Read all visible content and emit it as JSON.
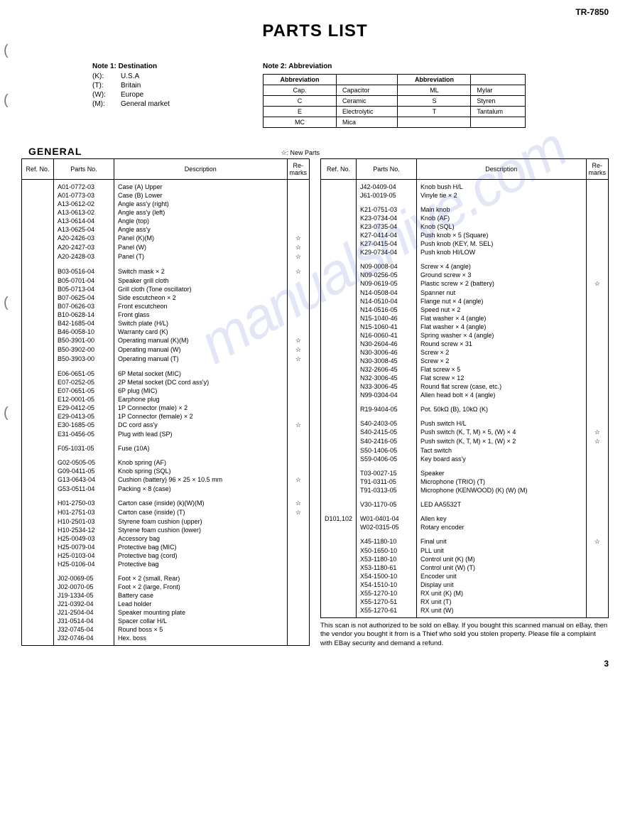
{
  "model": "TR-7850",
  "title": "PARTS LIST",
  "note1": {
    "header": "Note 1:  Destination",
    "rows": [
      {
        "code": "(K):",
        "label": "U.S.A"
      },
      {
        "code": "(T):",
        "label": "Britain"
      },
      {
        "code": "(W):",
        "label": "Europe"
      },
      {
        "code": "(M):",
        "label": "General market"
      }
    ]
  },
  "note2": {
    "header": "Note 2:  Abbreviation",
    "th": [
      "Abbreviation",
      "",
      "Abbreviation",
      ""
    ],
    "rows": [
      [
        "Cap.",
        "Capacitor",
        "ML",
        "Mylar"
      ],
      [
        "C",
        "Ceramic",
        "S",
        "Styren"
      ],
      [
        "E",
        "Electrolytic",
        "T",
        "Tantalum"
      ],
      [
        "MC",
        "Mica",
        "",
        ""
      ]
    ]
  },
  "section": "GENERAL",
  "newparts": "☆:  New Parts",
  "th": {
    "ref": "Ref. No.",
    "pn": "Parts No.",
    "desc": "Description",
    "rem": "Re-marks"
  },
  "left": [
    {
      "pn": "A01-0772-03",
      "desc": "Case (A) Upper"
    },
    {
      "pn": "A01-0773-03",
      "desc": "Case (B) Lower"
    },
    {
      "pn": "A13-0612-02",
      "desc": "Angle ass'y (right)"
    },
    {
      "pn": "A13-0613-02",
      "desc": "Angle ass'y (left)"
    },
    {
      "pn": "A13-0614-04",
      "desc": "Angle (top)"
    },
    {
      "pn": "A13-0625-04",
      "desc": "Angle ass'y"
    },
    {
      "pn": "A20-2426-03",
      "desc": "Panel (K)(M)",
      "rem": "☆"
    },
    {
      "pn": "A20-2427-03",
      "desc": "Panel (W)",
      "rem": "☆"
    },
    {
      "pn": "A20-2428-03",
      "desc": "Panel (T)",
      "rem": "☆"
    },
    {
      "sp": true
    },
    {
      "pn": "B03-0516-04",
      "desc": "Switch mask × 2",
      "rem": "☆"
    },
    {
      "pn": "B05-0701-04",
      "desc": "Speaker grill cloth"
    },
    {
      "pn": "B05-0713-04",
      "desc": "Grill cloth (Tone oscillator)"
    },
    {
      "pn": "B07-0625-04",
      "desc": "Side escutcheon × 2"
    },
    {
      "pn": "B07-0626-03",
      "desc": "Front escutcheon"
    },
    {
      "pn": "B10-0628-14",
      "desc": "Front glass"
    },
    {
      "pn": "B42-1685-04",
      "desc": "Switch plate (H/L)"
    },
    {
      "pn": "B46-0058-10",
      "desc": "Warranty card (K)"
    },
    {
      "pn": "B50-3901-00",
      "desc": "Operating manual (K)(M)",
      "rem": "☆"
    },
    {
      "pn": "B50-3902-00",
      "desc": "Operating manual (W)",
      "rem": "☆"
    },
    {
      "pn": "B50-3903-00",
      "desc": "Operating manual (T)",
      "rem": "☆"
    },
    {
      "sp": true
    },
    {
      "pn": "E06-0651-05",
      "desc": "6P Metal socket (MIC)"
    },
    {
      "pn": "E07-0252-05",
      "desc": "2P Metal socket (DC cord ass'y)"
    },
    {
      "pn": "E07-0651-05",
      "desc": "6P plug (MIC)"
    },
    {
      "pn": "E12-0001-05",
      "desc": "Earphone plug"
    },
    {
      "pn": "E29-0412-05",
      "desc": "1P Connector (male) × 2"
    },
    {
      "pn": "E29-0413-05",
      "desc": "1P Connector (female) × 2"
    },
    {
      "pn": "E30-1685-05",
      "desc": "DC cord ass'y",
      "rem": "☆"
    },
    {
      "pn": "E31-0456-05",
      "desc": "Plug with lead (SP)"
    },
    {
      "sp": true
    },
    {
      "pn": "F05-1031-05",
      "desc": "Fuse (10A)"
    },
    {
      "sp": true
    },
    {
      "pn": "G02-0505-05",
      "desc": "Knob spring (AF)"
    },
    {
      "pn": "G09-0411-05",
      "desc": "Knob spring (SQL)"
    },
    {
      "pn": "G13-0643-04",
      "desc": "Cushion (battery) 96 × 25 × 10.5 mm",
      "rem": "☆"
    },
    {
      "pn": "G53-0511-04",
      "desc": "Packing × 8 (case)"
    },
    {
      "sp": true
    },
    {
      "pn": "H01-2750-03",
      "desc": "Carton case (inside) (k)(W)(M)",
      "rem": "☆"
    },
    {
      "pn": "H01-2751-03",
      "desc": "Carton case (inside) (T)",
      "rem": "☆"
    },
    {
      "pn": "H10-2501-03",
      "desc": "Styrene foam cushion (upper)"
    },
    {
      "pn": "H10-2534-12",
      "desc": "Styrene foam cushion (lower)"
    },
    {
      "pn": "H25-0049-03",
      "desc": "Accessory bag"
    },
    {
      "pn": "H25-0079-04",
      "desc": "Protective bag (MIC)"
    },
    {
      "pn": "H25-0103-04",
      "desc": "Protective bag (cord)"
    },
    {
      "pn": "H25-0106-04",
      "desc": "Protective bag"
    },
    {
      "sp": true
    },
    {
      "pn": "J02-0069-05",
      "desc": "Foot × 2 (small, Rear)"
    },
    {
      "pn": "J02-0070-05",
      "desc": "Foot × 2 (large, Front)"
    },
    {
      "pn": "J19-1334-05",
      "desc": "Battery case"
    },
    {
      "pn": "J21-0392-04",
      "desc": "Lead holder"
    },
    {
      "pn": "J21-2504-04",
      "desc": "Speaker mounting plate"
    },
    {
      "pn": "J31-0514-04",
      "desc": "Spacer collar H/L"
    },
    {
      "pn": "J32-0745-04",
      "desc": "Round boss × 5"
    },
    {
      "pn": "J32-0746-04",
      "desc": "Hex. boss"
    }
  ],
  "right": [
    {
      "pn": "J42-0409-04",
      "desc": "Knob bush H/L"
    },
    {
      "pn": "J61-0019-05",
      "desc": "Vinyle tie × 2"
    },
    {
      "sp": true
    },
    {
      "pn": "K21-0751-03",
      "desc": "Main knob"
    },
    {
      "pn": "K23-0734-04",
      "desc": "Knob (AF)"
    },
    {
      "pn": "K23-0735-04",
      "desc": "Knob (SQL)"
    },
    {
      "pn": "K27-0414-04",
      "desc": "Push knob × 5 (Square)"
    },
    {
      "pn": "K27-0415-04",
      "desc": "Push knob (KEY, M. SEL)"
    },
    {
      "pn": "K29-0734-04",
      "desc": "Push knob HI/LOW"
    },
    {
      "sp": true
    },
    {
      "pn": "N09-0008-04",
      "desc": "Screw × 4 (angle)"
    },
    {
      "pn": "N09-0256-05",
      "desc": "Ground screw × 3"
    },
    {
      "pn": "N09-0619-05",
      "desc": "Plastic screw × 2 (battery)",
      "rem": "☆"
    },
    {
      "pn": "N14-0508-04",
      "desc": "Spanner nut"
    },
    {
      "pn": "N14-0510-04",
      "desc": "Flange nut × 4 (angle)"
    },
    {
      "pn": "N14-0516-05",
      "desc": "Speed nut × 2"
    },
    {
      "pn": "N15-1040-46",
      "desc": "Flat washer × 4 (angle)"
    },
    {
      "pn": "N15-1060-41",
      "desc": "Flat washer × 4 (angle)"
    },
    {
      "pn": "N16-0060-41",
      "desc": "Spring washer × 4 (angle)"
    },
    {
      "pn": "N30-2604-46",
      "desc": "Round screw × 31"
    },
    {
      "pn": "N30-3006-46",
      "desc": "Screw × 2"
    },
    {
      "pn": "N30-3008-45",
      "desc": "Screw × 2"
    },
    {
      "pn": "N32-2606-45",
      "desc": "Flat screw × 5"
    },
    {
      "pn": "N32-3006-45",
      "desc": "Flat screw × 12"
    },
    {
      "pn": "N33-3006-45",
      "desc": "Round flat screw (case, etc.)"
    },
    {
      "pn": "N99-0304-04",
      "desc": "Allen head bolt × 4 (angle)"
    },
    {
      "sp": true
    },
    {
      "pn": "R19-9404-05",
      "desc": "Pot. 50kΩ (B), 10kΩ (K)"
    },
    {
      "sp": true
    },
    {
      "pn": "S40-2403-05",
      "desc": "Push switch H/L"
    },
    {
      "pn": "S40-2415-05",
      "desc": "Push switch (K, T, M) × 5, (W) × 4",
      "rem": "☆"
    },
    {
      "pn": "S40-2416-05",
      "desc": "Push switch (K, T, M) × 1, (W) × 2",
      "rem": "☆"
    },
    {
      "pn": "S50-1406-05",
      "desc": "Tact switch"
    },
    {
      "pn": "S59-0406-05",
      "desc": "Key board ass'y"
    },
    {
      "sp": true
    },
    {
      "pn": "T03-0027-15",
      "desc": "Speaker"
    },
    {
      "pn": "T91-0311-05",
      "desc": "Microphone (TRIO) (T)"
    },
    {
      "pn": "T91-0313-05",
      "desc": "Microphone (KENWOOD) (K) (W) (M)"
    },
    {
      "sp": true
    },
    {
      "pn": "V30-1170-05",
      "desc": "LED  AA5532T"
    },
    {
      "sp": true
    },
    {
      "ref": "D101,102",
      "pn": "W01-0401-04",
      "desc": "Allen key"
    },
    {
      "pn": "W02-0315-05",
      "desc": "Rotary encoder"
    },
    {
      "sp": true
    },
    {
      "pn": "X45-1180-10",
      "desc": "Final unit",
      "rem": "☆"
    },
    {
      "pn": "X50-1650-10",
      "desc": "PLL unit"
    },
    {
      "pn": "X53-1180-10",
      "desc": "Control unit (K) (M)"
    },
    {
      "pn": "X53-1180-61",
      "desc": "Control unit (W) (T)"
    },
    {
      "pn": "X54-1500-10",
      "desc": "Encoder unit"
    },
    {
      "pn": "X54-1510-10",
      "desc": "Display unit"
    },
    {
      "pn": "X55-1270-10",
      "desc": "RX unit (K) (M)"
    },
    {
      "pn": "X55-1270-51",
      "desc": "RX unit (T)"
    },
    {
      "pn": "X55-1270-61",
      "desc": "RX unit (W)"
    }
  ],
  "footer": "This scan is not authorized to be sold on eBay. If you bought this scanned manual on eBay, then the vendor you bought it from is a Thief who sold you stolen property. Please file a complaint with EBay security and demand a refund.",
  "page": "3",
  "watermark": "manualshive.com"
}
